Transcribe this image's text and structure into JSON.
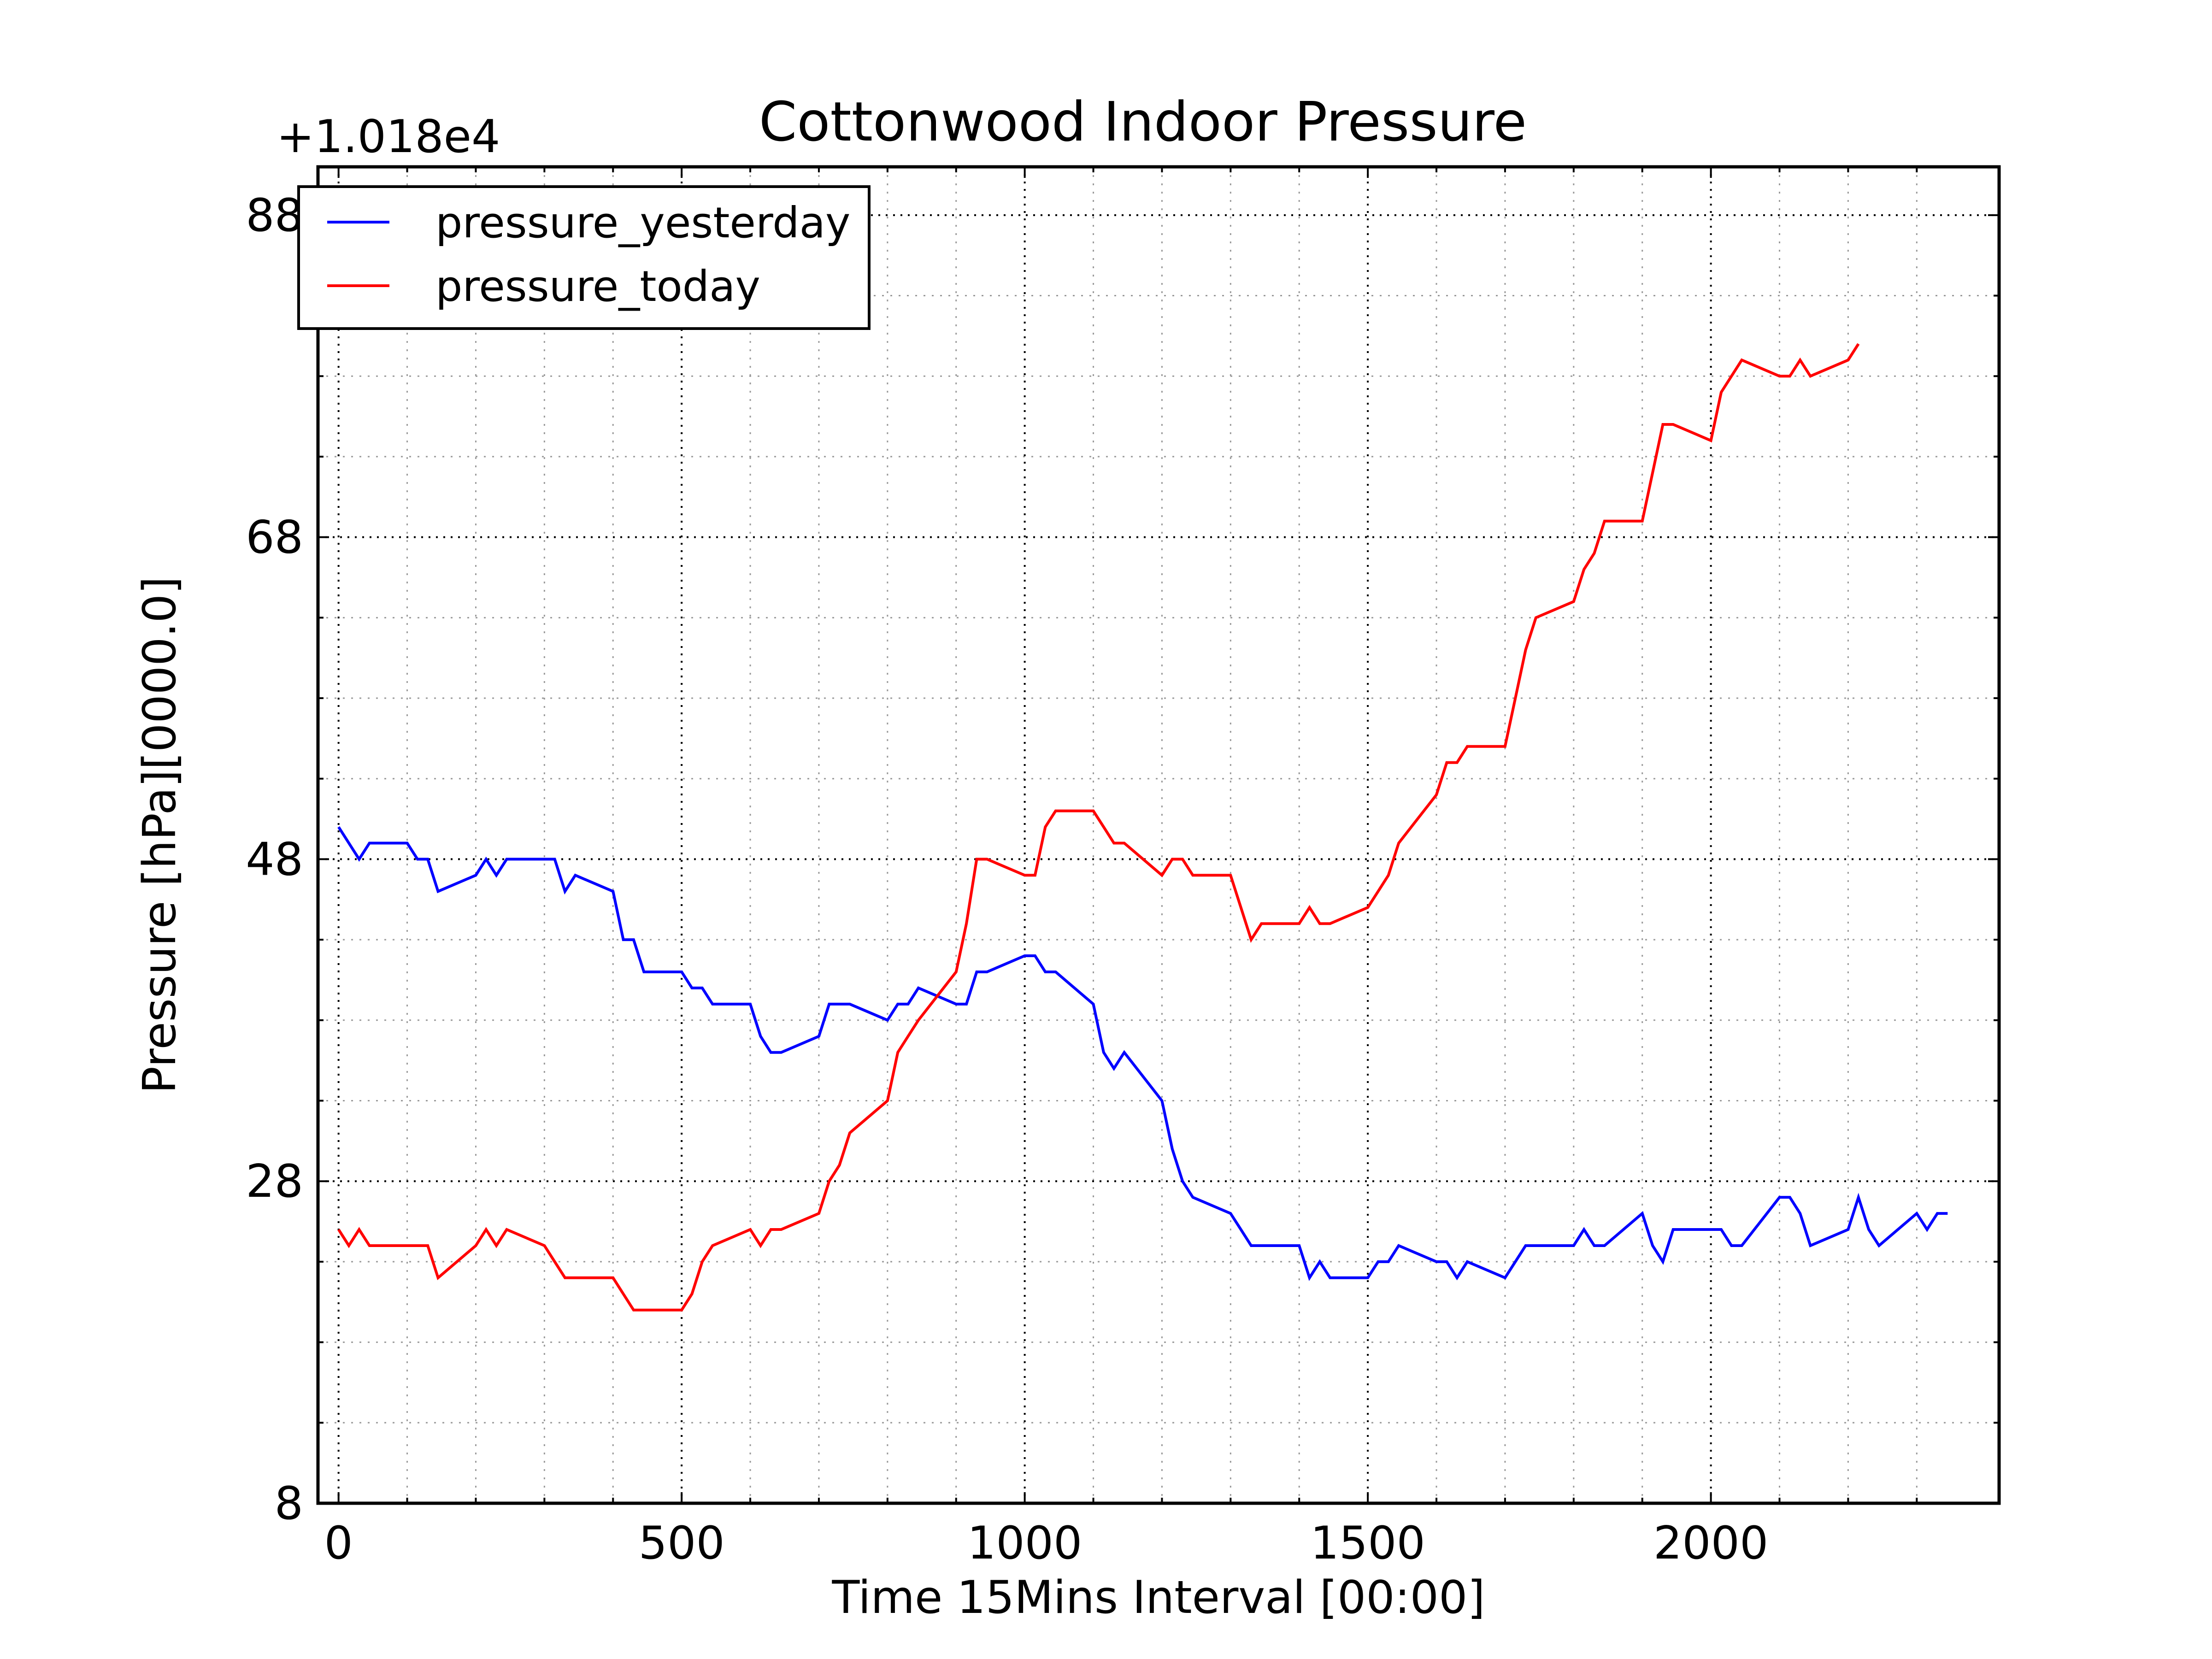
{
  "chart_data": {
    "type": "line",
    "title": "Cottonwood Indoor Pressure",
    "xlabel": "Time 15Mins Interval [00:00]",
    "ylabel": "Pressure [hPa][0000.0]",
    "y_offset_label": "+1.018e4",
    "xlim": [
      -30,
      2420
    ],
    "ylim": [
      8,
      91
    ],
    "x_ticks": [
      0,
      500,
      1000,
      1500,
      2000
    ],
    "x_tick_labels": [
      "0",
      "500",
      "1000",
      "1500",
      "2000"
    ],
    "x_minor_ticks": [
      100,
      200,
      300,
      400,
      600,
      700,
      800,
      900,
      1100,
      1200,
      1300,
      1400,
      1600,
      1700,
      1800,
      1900,
      2100,
      2200,
      2300
    ],
    "y_ticks": [
      8,
      28,
      48,
      68,
      88
    ],
    "y_tick_labels": [
      "8",
      "28",
      "48",
      "68",
      "88"
    ],
    "y_minor_ticks": [
      13,
      18,
      23,
      33,
      38,
      43,
      53,
      58,
      63,
      73,
      78,
      83
    ],
    "grid": true,
    "legend_position": "top-left",
    "series": [
      {
        "name": "pressure_yesterday",
        "color": "#0000ff",
        "x": [
          0,
          30,
          45,
          100,
          115,
          130,
          145,
          200,
          215,
          230,
          245,
          300,
          315,
          330,
          345,
          400,
          415,
          430,
          445,
          500,
          515,
          530,
          545,
          600,
          615,
          630,
          645,
          700,
          715,
          745,
          800,
          815,
          830,
          845,
          900,
          915,
          930,
          945,
          1000,
          1015,
          1030,
          1045,
          1100,
          1115,
          1130,
          1145,
          1200,
          1215,
          1230,
          1245,
          1300,
          1315,
          1330,
          1345,
          1400,
          1415,
          1430,
          1445,
          1500,
          1515,
          1530,
          1545,
          1600,
          1615,
          1630,
          1645,
          1700,
          1715,
          1730,
          1745,
          1800,
          1815,
          1830,
          1845,
          1900,
          1915,
          1930,
          1945,
          2000,
          2015,
          2030,
          2045,
          2100,
          2115,
          2130,
          2145,
          2200,
          2215,
          2230,
          2245,
          2300,
          2315,
          2330,
          2345
        ],
        "values": [
          50,
          48,
          49,
          49,
          48,
          48,
          46,
          47,
          48,
          47,
          48,
          48,
          48,
          46,
          47,
          46,
          43,
          43,
          41,
          41,
          40,
          40,
          39,
          39,
          37,
          36,
          36,
          37,
          39,
          39,
          38,
          39,
          39,
          40,
          39,
          39,
          41,
          41,
          42,
          42,
          41,
          41,
          39,
          36,
          35,
          36,
          33,
          30,
          28,
          27,
          26,
          25,
          24,
          24,
          24,
          22,
          23,
          22,
          22,
          23,
          23,
          24,
          23,
          23,
          22,
          23,
          22,
          23,
          24,
          24,
          24,
          25,
          24,
          24,
          26,
          24,
          23,
          25,
          25,
          25,
          24,
          24,
          27,
          27,
          26,
          24,
          25,
          27,
          25,
          24,
          26,
          25,
          26,
          26
        ]
      },
      {
        "name": "pressure_today",
        "color": "#ff0000",
        "x": [
          0,
          15,
          30,
          45,
          130,
          145,
          200,
          215,
          230,
          245,
          300,
          315,
          330,
          400,
          415,
          430,
          445,
          500,
          515,
          530,
          545,
          600,
          615,
          630,
          645,
          700,
          715,
          730,
          745,
          800,
          815,
          830,
          845,
          900,
          915,
          930,
          945,
          1000,
          1015,
          1030,
          1045,
          1100,
          1115,
          1130,
          1145,
          1200,
          1215,
          1230,
          1245,
          1300,
          1315,
          1330,
          1345,
          1400,
          1415,
          1430,
          1445,
          1500,
          1515,
          1530,
          1545,
          1600,
          1615,
          1630,
          1645,
          1700,
          1715,
          1730,
          1745,
          1800,
          1815,
          1830,
          1845,
          1900,
          1915,
          1930,
          1945,
          2000,
          2015,
          2030,
          2045,
          2100,
          2115,
          2130,
          2145,
          2200,
          2215
        ],
        "values": [
          25,
          24,
          25,
          24,
          24,
          22,
          24,
          25,
          24,
          25,
          24,
          23,
          22,
          22,
          21,
          20,
          20,
          20,
          21,
          23,
          24,
          25,
          24,
          25,
          25,
          26,
          28,
          29,
          31,
          33,
          36,
          37,
          38,
          41,
          44,
          48,
          48,
          47,
          47,
          50,
          51,
          51,
          50,
          49,
          49,
          47,
          48,
          48,
          47,
          47,
          45,
          43,
          44,
          44,
          45,
          44,
          44,
          45,
          46,
          47,
          49,
          52,
          54,
          54,
          55,
          55,
          58,
          61,
          63,
          64,
          66,
          67,
          69,
          69,
          72,
          75,
          75,
          74,
          77,
          78,
          79,
          78,
          78,
          79,
          78,
          79,
          80
        ]
      }
    ]
  }
}
